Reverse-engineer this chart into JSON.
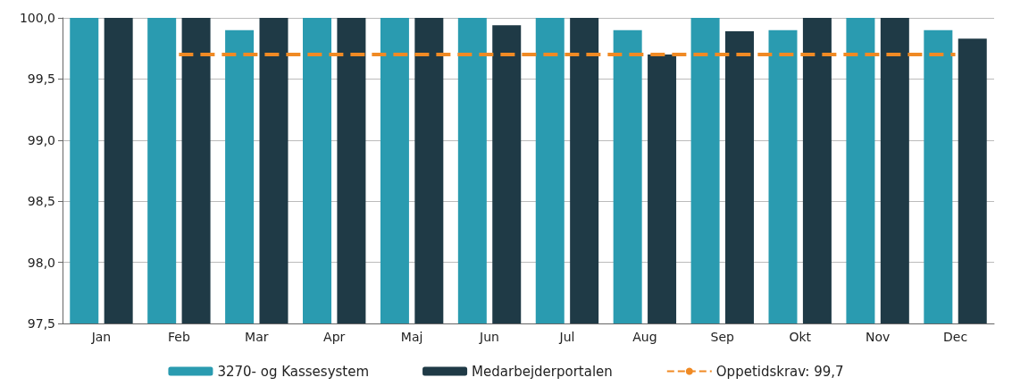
{
  "chart_data": {
    "type": "bar",
    "categories": [
      "Jan",
      "Feb",
      "Mar",
      "Apr",
      "Maj",
      "Jun",
      "Jul",
      "Aug",
      "Sep",
      "Okt",
      "Nov",
      "Dec"
    ],
    "series": [
      {
        "name": "3270- og Kassesystem",
        "color": "#2a9bb0",
        "values": [
          100,
          100,
          99.9,
          100,
          100,
          100,
          100,
          99.9,
          100,
          99.9,
          100,
          99.9
        ]
      },
      {
        "name": "Medarbejderportalen",
        "color": "#1f3a46",
        "values": [
          100,
          100,
          100,
          100,
          100,
          99.94,
          100,
          99.7,
          99.89,
          100,
          100,
          99.83
        ]
      }
    ],
    "ylim": [
      97.5,
      100
    ],
    "yticks": [
      {
        "value": 97.5,
        "label": "97,5"
      },
      {
        "value": 98,
        "label": "98,0"
      },
      {
        "value": 98.5,
        "label": "98,5"
      },
      {
        "value": 99,
        "label": "99,0"
      },
      {
        "value": 99.5,
        "label": "99,5"
      },
      {
        "value": 100,
        "label": "100,0"
      }
    ],
    "ref_lines": [
      {
        "axis": "y",
        "value": 99.7,
        "label": "Oppetidskrav: 99,7",
        "color": "#f08a24",
        "line_style": "dashed"
      }
    ],
    "grid": "y",
    "legend": "bottom"
  }
}
